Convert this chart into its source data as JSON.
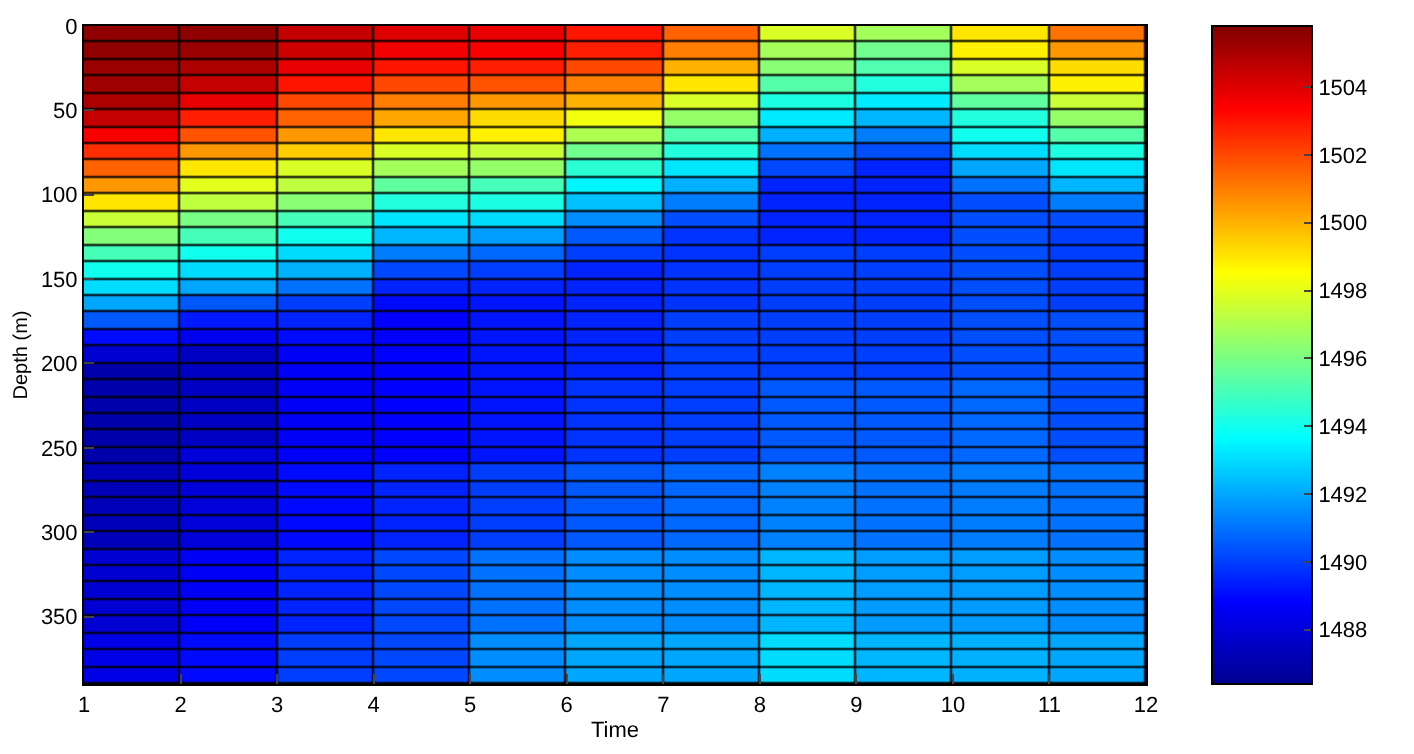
{
  "chart_data": {
    "type": "heatmap",
    "xlabel": "Time",
    "ylabel": "Depth (m)",
    "xlim": [
      1,
      12
    ],
    "ylim": [
      390,
      0
    ],
    "xticks": [
      1,
      2,
      3,
      4,
      5,
      6,
      7,
      8,
      9,
      10,
      11,
      12
    ],
    "yticks": [
      0,
      50,
      100,
      150,
      200,
      250,
      300,
      350
    ],
    "clim": [
      1486.4,
      1505.8
    ],
    "cticks": [
      1488,
      1490,
      1492,
      1494,
      1496,
      1498,
      1500,
      1502,
      1504
    ],
    "grid": false,
    "cells": [
      [
        1505.5,
        1505.5,
        1504.5,
        1504,
        1503.8,
        1503,
        1501.5,
        1497.8,
        1496.8,
        1499,
        1501.2
      ],
      [
        1505.5,
        1505.3,
        1504.3,
        1503.6,
        1503.5,
        1502.8,
        1501,
        1496.8,
        1495.8,
        1498.8,
        1500.5
      ],
      [
        1505.3,
        1505,
        1503.8,
        1503,
        1502.8,
        1502,
        1500,
        1496.3,
        1495.2,
        1497.8,
        1499.2
      ],
      [
        1505.2,
        1504.5,
        1503,
        1502,
        1501.8,
        1501,
        1499,
        1495.3,
        1494.3,
        1496.8,
        1498.8
      ],
      [
        1505,
        1503.8,
        1502,
        1501,
        1500.5,
        1500,
        1497.8,
        1494.2,
        1493.3,
        1495.5,
        1497.5
      ],
      [
        1504.5,
        1502.8,
        1501.5,
        1500.2,
        1499.2,
        1498.3,
        1496.5,
        1493.3,
        1492.3,
        1494.3,
        1496.5
      ],
      [
        1503.5,
        1501.8,
        1500.5,
        1499,
        1498.8,
        1497,
        1495.2,
        1492.2,
        1491.2,
        1494,
        1495.3
      ],
      [
        1502.5,
        1500.5,
        1499.5,
        1497.8,
        1497.5,
        1495.8,
        1494.3,
        1491,
        1490.3,
        1493,
        1494.2
      ],
      [
        1501.5,
        1499,
        1497.8,
        1496.8,
        1496.5,
        1494.5,
        1493.2,
        1490.2,
        1489.5,
        1492,
        1493.2
      ],
      [
        1500.5,
        1498,
        1497.3,
        1495.5,
        1495,
        1493.5,
        1492.2,
        1489.5,
        1489.5,
        1491,
        1492.3
      ],
      [
        1499,
        1497.3,
        1496.3,
        1494.3,
        1494.2,
        1492.5,
        1491.2,
        1489.5,
        1489.5,
        1490.3,
        1491.2
      ],
      [
        1497.5,
        1496,
        1495,
        1493.2,
        1493,
        1491.5,
        1490.3,
        1489.5,
        1489.5,
        1490.3,
        1490.3
      ],
      [
        1496.2,
        1495,
        1494,
        1492.3,
        1491.8,
        1490.5,
        1489.8,
        1489.5,
        1489.5,
        1490.3,
        1490
      ],
      [
        1495,
        1494,
        1493,
        1491.2,
        1490.8,
        1490,
        1489.8,
        1490,
        1490,
        1490.3,
        1490
      ],
      [
        1494,
        1493,
        1492.2,
        1490.2,
        1490,
        1489.5,
        1489.8,
        1490,
        1490,
        1490.3,
        1490
      ],
      [
        1493,
        1492,
        1491,
        1489.5,
        1489.5,
        1489.5,
        1489.8,
        1490,
        1490,
        1490.3,
        1490
      ],
      [
        1492,
        1490.5,
        1490,
        1489,
        1489.2,
        1489.5,
        1489.8,
        1490,
        1490,
        1490.3,
        1490
      ],
      [
        1490.5,
        1489.3,
        1489.5,
        1488.8,
        1489.2,
        1489.5,
        1490,
        1490,
        1490,
        1490.3,
        1490.3
      ],
      [
        1489,
        1488.5,
        1489,
        1488.8,
        1489.2,
        1489.5,
        1490,
        1490,
        1490,
        1490.3,
        1490.3
      ],
      [
        1487.8,
        1487.5,
        1488.7,
        1488.8,
        1489.2,
        1489.5,
        1490,
        1490,
        1490,
        1490.3,
        1490.3
      ],
      [
        1487,
        1487.5,
        1488.7,
        1488.8,
        1489.2,
        1489.5,
        1490,
        1490,
        1490,
        1490.3,
        1490.3
      ],
      [
        1487,
        1487.5,
        1488.7,
        1488.8,
        1489.2,
        1489.8,
        1490,
        1490.5,
        1490.5,
        1490.8,
        1490.3
      ],
      [
        1487,
        1487.5,
        1488.7,
        1488.8,
        1489.2,
        1489.8,
        1490,
        1490.5,
        1490.5,
        1490.8,
        1490.3
      ],
      [
        1487,
        1487.5,
        1488.7,
        1488.8,
        1489.2,
        1489.8,
        1490,
        1490.5,
        1490.5,
        1490.8,
        1490.3
      ],
      [
        1487,
        1487.5,
        1488.7,
        1488.8,
        1489.2,
        1489.8,
        1490,
        1490.5,
        1490.5,
        1490.8,
        1490.3
      ],
      [
        1487,
        1488,
        1488.7,
        1488.8,
        1489.2,
        1489.8,
        1490,
        1490.5,
        1490.5,
        1490.8,
        1490.3
      ],
      [
        1487.3,
        1488,
        1489,
        1489.5,
        1490,
        1490.5,
        1490.8,
        1491.3,
        1491,
        1491.2,
        1491
      ],
      [
        1487.3,
        1488,
        1489,
        1489.5,
        1490,
        1490.5,
        1490.8,
        1491.3,
        1491,
        1491.2,
        1491
      ],
      [
        1487.3,
        1488,
        1489,
        1489.5,
        1490,
        1490.5,
        1490.8,
        1491.3,
        1491,
        1491.2,
        1491
      ],
      [
        1487.3,
        1488,
        1489,
        1489.5,
        1490,
        1490.5,
        1490.8,
        1491.3,
        1491,
        1491.2,
        1491
      ],
      [
        1487.3,
        1488,
        1489,
        1489.5,
        1490,
        1490.5,
        1490.8,
        1491.3,
        1491,
        1491.2,
        1491
      ],
      [
        1487.8,
        1488.7,
        1489.5,
        1490.2,
        1491,
        1491.5,
        1491.5,
        1492.3,
        1491.8,
        1491.8,
        1491.5
      ],
      [
        1487.8,
        1488.7,
        1489.5,
        1490.2,
        1491,
        1491.5,
        1491.5,
        1492.3,
        1491.8,
        1491.8,
        1491.5
      ],
      [
        1487.8,
        1488.7,
        1489.5,
        1490.2,
        1491,
        1491.5,
        1491.5,
        1492.3,
        1491.8,
        1491.8,
        1491.5
      ],
      [
        1487.8,
        1488.7,
        1489.5,
        1490.2,
        1491,
        1491.5,
        1491.5,
        1492.3,
        1491.8,
        1491.8,
        1491.5
      ],
      [
        1487.8,
        1488.7,
        1489.5,
        1490.2,
        1491,
        1491.5,
        1491.5,
        1492.3,
        1491.8,
        1491.8,
        1491.5
      ],
      [
        1488.3,
        1489,
        1490,
        1490.2,
        1491.5,
        1492,
        1492,
        1493,
        1492.3,
        1492.2,
        1492
      ],
      [
        1488.3,
        1489,
        1490,
        1490.2,
        1491.5,
        1492,
        1492,
        1493,
        1492.3,
        1492.2,
        1492
      ],
      [
        1488.3,
        1489,
        1490,
        1490.2,
        1491.5,
        1492,
        1492,
        1493,
        1492.3,
        1492.2,
        1492
      ]
    ]
  }
}
